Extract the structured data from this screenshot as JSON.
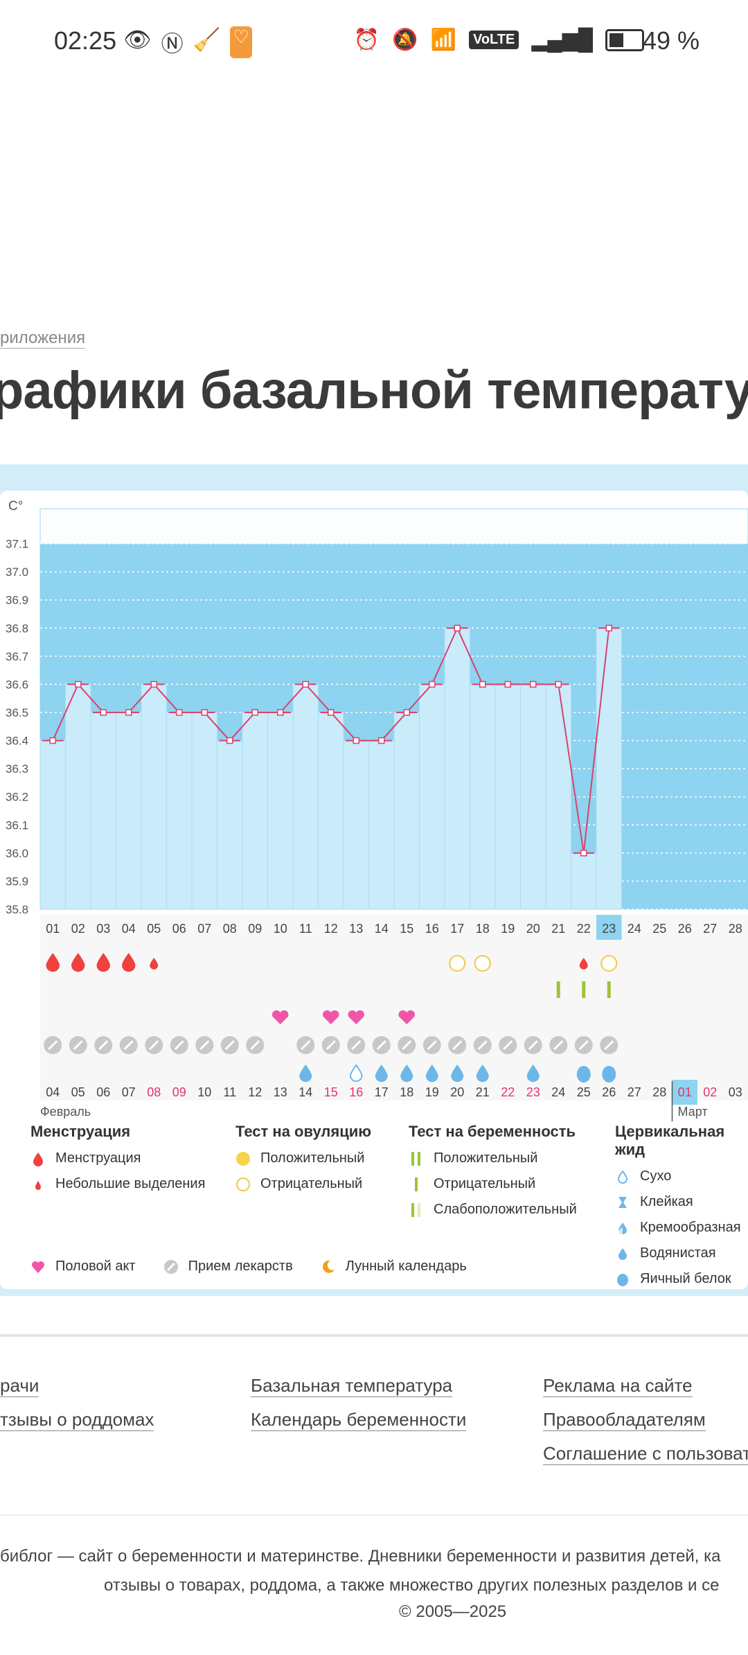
{
  "status_bar": {
    "time": "02:25",
    "battery": "49 %",
    "volte": "VoLTE"
  },
  "breadcrumb": "риложения",
  "page_title": "рафики базальной температур",
  "chart_data": {
    "type": "line",
    "ylabel": "C°",
    "ylim": [
      35.8,
      37.2
    ],
    "y_ticks": [
      "37.1",
      "37.0",
      "36.9",
      "36.8",
      "36.7",
      "36.6",
      "36.5",
      "36.4",
      "36.3",
      "36.2",
      "36.1",
      "36.0",
      "35.9",
      "35.8"
    ],
    "cycle_days": [
      "01",
      "02",
      "03",
      "04",
      "05",
      "06",
      "07",
      "08",
      "09",
      "10",
      "11",
      "12",
      "13",
      "14",
      "15",
      "16",
      "17",
      "18",
      "19",
      "20",
      "21",
      "22",
      "23",
      "24",
      "25",
      "26",
      "27",
      "28"
    ],
    "dates": [
      "04",
      "05",
      "06",
      "07",
      "08",
      "09",
      "10",
      "11",
      "12",
      "13",
      "14",
      "15",
      "16",
      "17",
      "18",
      "19",
      "20",
      "21",
      "22",
      "23",
      "24",
      "25",
      "26",
      "27",
      "28",
      "01",
      "02",
      "03"
    ],
    "weekend_dates": [
      4,
      5,
      11,
      12,
      18,
      19,
      25,
      26
    ],
    "temperatures": [
      36.4,
      36.6,
      36.5,
      36.5,
      36.6,
      36.5,
      36.5,
      36.4,
      36.5,
      36.5,
      36.6,
      36.5,
      36.4,
      36.4,
      36.5,
      36.6,
      36.8,
      36.6,
      36.6,
      36.6,
      36.6,
      36.0,
      36.8
    ],
    "current_day_index": 22,
    "months": [
      "Февраль",
      "Март"
    ],
    "menstruation": [
      "heavy",
      "heavy",
      "heavy",
      "heavy",
      "light",
      null,
      null,
      null,
      null,
      null,
      null,
      null,
      null,
      null,
      null,
      null,
      null,
      null,
      null,
      null,
      null,
      "light",
      null
    ],
    "ovulation_test": [
      null,
      null,
      null,
      null,
      null,
      null,
      null,
      null,
      null,
      null,
      null,
      null,
      null,
      null,
      null,
      null,
      "negative",
      "negative",
      null,
      null,
      null,
      null,
      "negative"
    ],
    "pregnancy_test": [
      null,
      null,
      null,
      null,
      null,
      null,
      null,
      null,
      null,
      null,
      null,
      null,
      null,
      null,
      null,
      null,
      null,
      null,
      null,
      null,
      "negative",
      "negative",
      "negative"
    ],
    "intercourse": [
      false,
      false,
      false,
      false,
      false,
      false,
      false,
      false,
      false,
      true,
      false,
      true,
      true,
      false,
      true,
      false,
      false,
      false,
      false,
      false,
      false,
      false,
      false
    ],
    "medication": [
      true,
      true,
      true,
      true,
      true,
      true,
      true,
      true,
      true,
      false,
      true,
      true,
      true,
      true,
      true,
      true,
      true,
      true,
      true,
      true,
      true,
      true,
      true
    ],
    "cervical_fluid": [
      null,
      null,
      null,
      null,
      null,
      null,
      null,
      null,
      null,
      null,
      "watery",
      null,
      "dry",
      "watery",
      "watery",
      "watery",
      "watery",
      "watery",
      null,
      "watery",
      null,
      "eggwhite",
      "eggwhite"
    ]
  },
  "legend": {
    "menstruation": {
      "title": "Менструация",
      "items": [
        "Менструация",
        "Небольшие выделения"
      ]
    },
    "ovulation": {
      "title": "Тест на овуляцию",
      "items": [
        "Положительный",
        "Отрицательный"
      ]
    },
    "pregnancy": {
      "title": "Тест на беременность",
      "items": [
        "Положительный",
        "Отрицательный",
        "Слабоположительный"
      ]
    },
    "cervical": {
      "title": "Цервикальная жид",
      "items": [
        "Сухо",
        "Клейкая",
        "Кремообразная",
        "Водянистая",
        "Яичный белок"
      ]
    },
    "other": [
      "Половой акт",
      "Прием лекарств",
      "Лунный календарь"
    ]
  },
  "colors": {
    "chart_bg": "#8ed3f0",
    "bar": "#c9ebfa",
    "line": "#d8436e",
    "drop": "#f04040",
    "heart": "#f255a8",
    "ovulation": "#f0c94a",
    "pregnancy": "#9ec33a",
    "cervical": "#6db7e8",
    "weekend": "#e6336a"
  },
  "footer": {
    "col1": [
      "рачи",
      "тзывы о роддомах"
    ],
    "col2": [
      "Базальная температура",
      "Календарь беременности"
    ],
    "col3": [
      "Реклама на сайте",
      "Правообладателям",
      "Соглашение с пользовате"
    ],
    "about_line1": "библог — сайт о беременности и материнстве. Дневники беременности и развития детей, ка",
    "about_line2": "отзывы о товарах, роддома, а также множество других полезных разделов и се",
    "copyright": "© 2005—2025"
  }
}
